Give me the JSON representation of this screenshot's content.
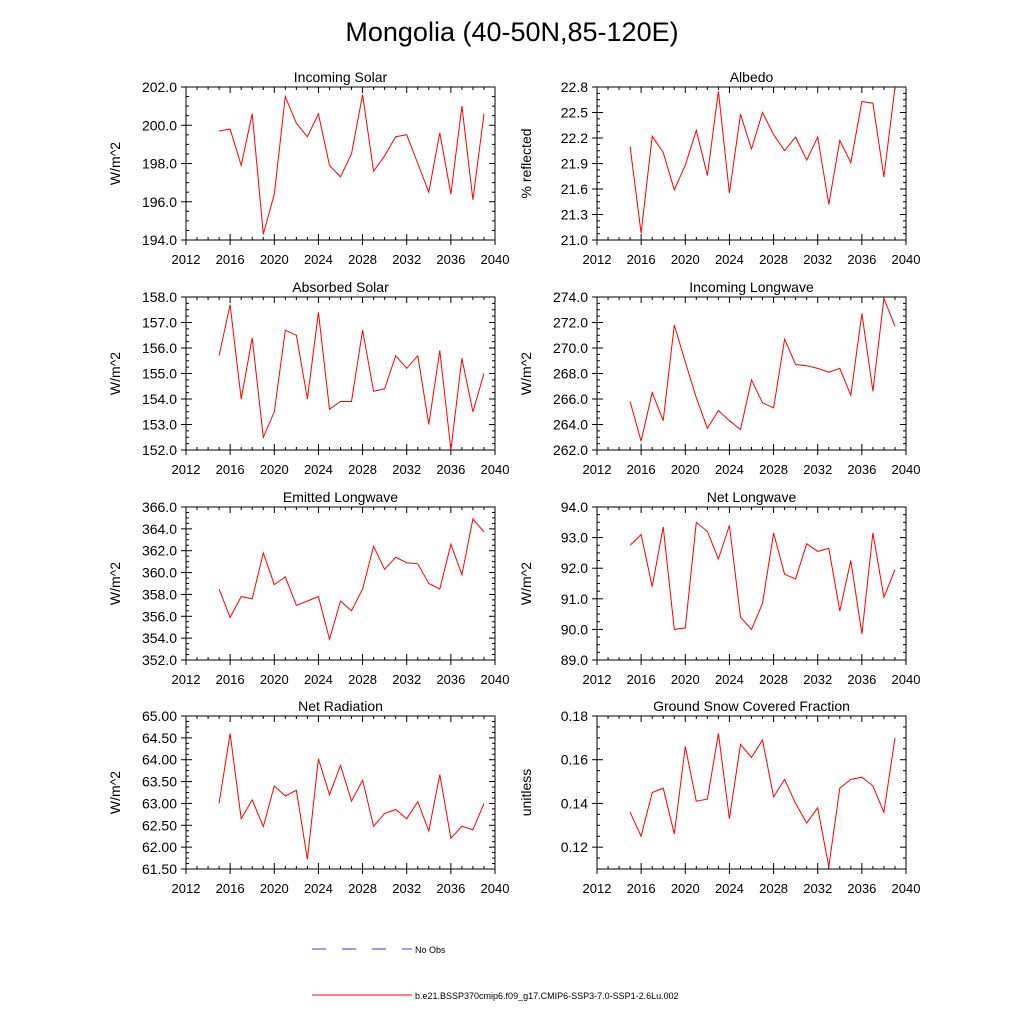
{
  "figure": {
    "title": "Mongolia (40-50N,85-120E)",
    "legend": {
      "entries": [
        {
          "label": "No Obs",
          "style": "dashed",
          "color": "#3d3dcc"
        },
        {
          "label": "b.e21.BSSP370cmip6.f09_g17.CMIP6-SSP3-7.0-SSP1-2.6Lu.002",
          "style": "solid",
          "color": "#ff0000"
        }
      ]
    }
  },
  "chart_data": [
    {
      "type": "line",
      "title": "Incoming Solar",
      "xlabel": "",
      "ylabel": "W/m^2",
      "xlim": [
        2012,
        2040
      ],
      "ylim": [
        194.0,
        202.0
      ],
      "xticks": [
        "2012",
        "2016",
        "2020",
        "2024",
        "2028",
        "2032",
        "2036",
        "2040"
      ],
      "yticks": [
        "194.0",
        "196.0",
        "198.0",
        "200.0",
        "202.0"
      ],
      "series": [
        {
          "color": "#ff0000",
          "x": [
            2015,
            2016,
            2017,
            2018,
            2019,
            2020,
            2021,
            2022,
            2023,
            2024,
            2025,
            2026,
            2027,
            2028,
            2029,
            2030,
            2031,
            2032,
            2033,
            2034,
            2035,
            2036,
            2037,
            2038,
            2039
          ],
          "values": [
            199.7,
            199.8,
            197.9,
            200.6,
            194.3,
            196.4,
            201.5,
            200.1,
            199.4,
            200.6,
            197.9,
            197.3,
            198.5,
            201.6,
            197.6,
            198.4,
            199.4,
            199.5,
            198.0,
            196.5,
            199.6,
            196.4,
            201.0,
            196.1,
            200.6
          ]
        }
      ]
    },
    {
      "type": "line",
      "title": "Albedo",
      "xlabel": "",
      "ylabel": "% reflected",
      "xlim": [
        2012,
        2040
      ],
      "ylim": [
        21.0,
        22.8
      ],
      "xticks": [
        "2012",
        "2016",
        "2020",
        "2024",
        "2028",
        "2032",
        "2036",
        "2040"
      ],
      "yticks": [
        "21.0",
        "21.3",
        "21.6",
        "21.9",
        "22.2",
        "22.5",
        "22.8"
      ],
      "series": [
        {
          "color": "#ff0000",
          "x": [
            2015,
            2016,
            2017,
            2018,
            2019,
            2020,
            2021,
            2022,
            2023,
            2024,
            2025,
            2026,
            2027,
            2028,
            2029,
            2030,
            2031,
            2032,
            2033,
            2034,
            2035,
            2036,
            2037,
            2038,
            2039
          ],
          "values": [
            22.1,
            21.08,
            22.22,
            22.03,
            21.59,
            21.88,
            22.29,
            21.76,
            22.75,
            21.55,
            22.48,
            22.07,
            22.5,
            22.24,
            22.05,
            22.21,
            21.94,
            22.21,
            21.42,
            22.17,
            21.91,
            22.63,
            22.61,
            21.74,
            22.8
          ]
        }
      ]
    },
    {
      "type": "line",
      "title": "Absorbed Solar",
      "xlabel": "",
      "ylabel": "W/m^2",
      "xlim": [
        2012,
        2040
      ],
      "ylim": [
        152.0,
        158.0
      ],
      "xticks": [
        "2012",
        "2016",
        "2020",
        "2024",
        "2028",
        "2032",
        "2036",
        "2040"
      ],
      "yticks": [
        "152.0",
        "153.0",
        "154.0",
        "155.0",
        "156.0",
        "157.0",
        "158.0"
      ],
      "series": [
        {
          "color": "#ff0000",
          "x": [
            2015,
            2016,
            2017,
            2018,
            2019,
            2020,
            2021,
            2022,
            2023,
            2024,
            2025,
            2026,
            2027,
            2028,
            2029,
            2030,
            2031,
            2032,
            2033,
            2034,
            2035,
            2036,
            2037,
            2038,
            2039
          ],
          "values": [
            155.7,
            157.7,
            154.0,
            156.4,
            152.5,
            153.5,
            156.7,
            156.5,
            154.0,
            157.4,
            153.6,
            153.9,
            153.9,
            156.7,
            154.3,
            154.4,
            155.7,
            155.2,
            155.7,
            153.0,
            155.9,
            152.0,
            155.6,
            153.5,
            155.0
          ]
        }
      ]
    },
    {
      "type": "line",
      "title": "Incoming Longwave",
      "xlabel": "",
      "ylabel": "W/m^2",
      "xlim": [
        2012,
        2040
      ],
      "ylim": [
        262.0,
        274.0
      ],
      "xticks": [
        "2012",
        "2016",
        "2020",
        "2024",
        "2028",
        "2032",
        "2036",
        "2040"
      ],
      "yticks": [
        "262.0",
        "264.0",
        "266.0",
        "268.0",
        "270.0",
        "272.0",
        "274.0"
      ],
      "series": [
        {
          "color": "#ff0000",
          "x": [
            2015,
            2016,
            2017,
            2018,
            2019,
            2020,
            2021,
            2022,
            2023,
            2024,
            2025,
            2026,
            2027,
            2028,
            2029,
            2030,
            2031,
            2032,
            2033,
            2034,
            2035,
            2036,
            2037,
            2038,
            2039
          ],
          "values": [
            265.8,
            262.7,
            266.5,
            264.3,
            271.8,
            268.9,
            266.1,
            263.7,
            265.1,
            264.3,
            263.6,
            267.5,
            265.7,
            265.3,
            270.7,
            268.7,
            268.6,
            268.4,
            268.1,
            268.4,
            266.3,
            272.7,
            266.6,
            273.9,
            271.7
          ]
        }
      ]
    },
    {
      "type": "line",
      "title": "Emitted Longwave",
      "xlabel": "",
      "ylabel": "W/m^2",
      "xlim": [
        2012,
        2040
      ],
      "ylim": [
        352.0,
        366.0
      ],
      "xticks": [
        "2012",
        "2016",
        "2020",
        "2024",
        "2028",
        "2032",
        "2036",
        "2040"
      ],
      "yticks": [
        "352.0",
        "354.0",
        "356.0",
        "358.0",
        "360.0",
        "362.0",
        "364.0",
        "366.0"
      ],
      "series": [
        {
          "color": "#ff0000",
          "x": [
            2015,
            2016,
            2017,
            2018,
            2019,
            2020,
            2021,
            2022,
            2023,
            2024,
            2025,
            2026,
            2027,
            2028,
            2029,
            2030,
            2031,
            2032,
            2033,
            2034,
            2035,
            2036,
            2037,
            2038,
            2039
          ],
          "values": [
            358.5,
            355.9,
            357.8,
            357.6,
            361.8,
            358.9,
            359.6,
            357.0,
            357.4,
            357.8,
            353.9,
            357.4,
            356.5,
            358.5,
            362.4,
            360.3,
            361.4,
            360.9,
            360.8,
            359.0,
            358.5,
            362.6,
            359.8,
            364.9,
            363.7
          ]
        }
      ]
    },
    {
      "type": "line",
      "title": "Net Longwave",
      "xlabel": "",
      "ylabel": "W/m^2",
      "xlim": [
        2012,
        2040
      ],
      "ylim": [
        89.0,
        94.0
      ],
      "xticks": [
        "2012",
        "2016",
        "2020",
        "2024",
        "2028",
        "2032",
        "2036",
        "2040"
      ],
      "yticks": [
        "89.0",
        "90.0",
        "91.0",
        "92.0",
        "93.0",
        "94.0"
      ],
      "series": [
        {
          "color": "#ff0000",
          "x": [
            2015,
            2016,
            2017,
            2018,
            2019,
            2020,
            2021,
            2022,
            2023,
            2024,
            2025,
            2026,
            2027,
            2028,
            2029,
            2030,
            2031,
            2032,
            2033,
            2034,
            2035,
            2036,
            2037,
            2038,
            2039
          ],
          "values": [
            92.75,
            93.1,
            91.4,
            93.35,
            90.0,
            90.05,
            93.5,
            93.2,
            92.3,
            93.4,
            90.4,
            90.0,
            90.85,
            93.15,
            91.8,
            91.65,
            92.8,
            92.55,
            92.65,
            90.6,
            92.25,
            89.85,
            93.15,
            91.05,
            91.95
          ]
        }
      ]
    },
    {
      "type": "line",
      "title": "Net Radiation",
      "xlabel": "",
      "ylabel": "W/m^2",
      "xlim": [
        2012,
        2040
      ],
      "ylim": [
        61.5,
        65.0
      ],
      "xticks": [
        "2012",
        "2016",
        "2020",
        "2024",
        "2028",
        "2032",
        "2036",
        "2040"
      ],
      "yticks": [
        "61.50",
        "62.00",
        "62.50",
        "63.00",
        "63.50",
        "64.00",
        "64.50",
        "65.00"
      ],
      "series": [
        {
          "color": "#ff0000",
          "x": [
            2015,
            2016,
            2017,
            2018,
            2019,
            2020,
            2021,
            2022,
            2023,
            2024,
            2025,
            2026,
            2027,
            2028,
            2029,
            2030,
            2031,
            2032,
            2033,
            2034,
            2035,
            2036,
            2037,
            2038,
            2039
          ],
          "values": [
            63.0,
            64.6,
            62.65,
            63.08,
            62.47,
            63.4,
            63.17,
            63.3,
            61.72,
            64.02,
            63.2,
            63.87,
            63.05,
            63.53,
            62.48,
            62.77,
            62.86,
            62.65,
            63.04,
            62.37,
            63.66,
            62.2,
            62.48,
            62.4,
            63.0
          ]
        }
      ]
    },
    {
      "type": "line",
      "title": "Ground Snow Covered Fraction",
      "xlabel": "",
      "ylabel": "unitless",
      "xlim": [
        2012,
        2040
      ],
      "ylim": [
        0.11,
        0.18
      ],
      "xticks": [
        "2012",
        "2016",
        "2020",
        "2024",
        "2028",
        "2032",
        "2036",
        "2040"
      ],
      "yticks": [
        "0.12",
        "0.14",
        "0.16",
        "0.18"
      ],
      "series": [
        {
          "color": "#ff0000",
          "x": [
            2015,
            2016,
            2017,
            2018,
            2019,
            2020,
            2021,
            2022,
            2023,
            2024,
            2025,
            2026,
            2027,
            2028,
            2029,
            2030,
            2031,
            2032,
            2033,
            2034,
            2035,
            2036,
            2037,
            2038,
            2039
          ],
          "values": [
            0.136,
            0.125,
            0.145,
            0.147,
            0.126,
            0.166,
            0.141,
            0.142,
            0.172,
            0.133,
            0.167,
            0.161,
            0.169,
            0.143,
            0.151,
            0.14,
            0.131,
            0.138,
            0.111,
            0.147,
            0.151,
            0.152,
            0.148,
            0.136,
            0.17
          ]
        }
      ]
    }
  ]
}
